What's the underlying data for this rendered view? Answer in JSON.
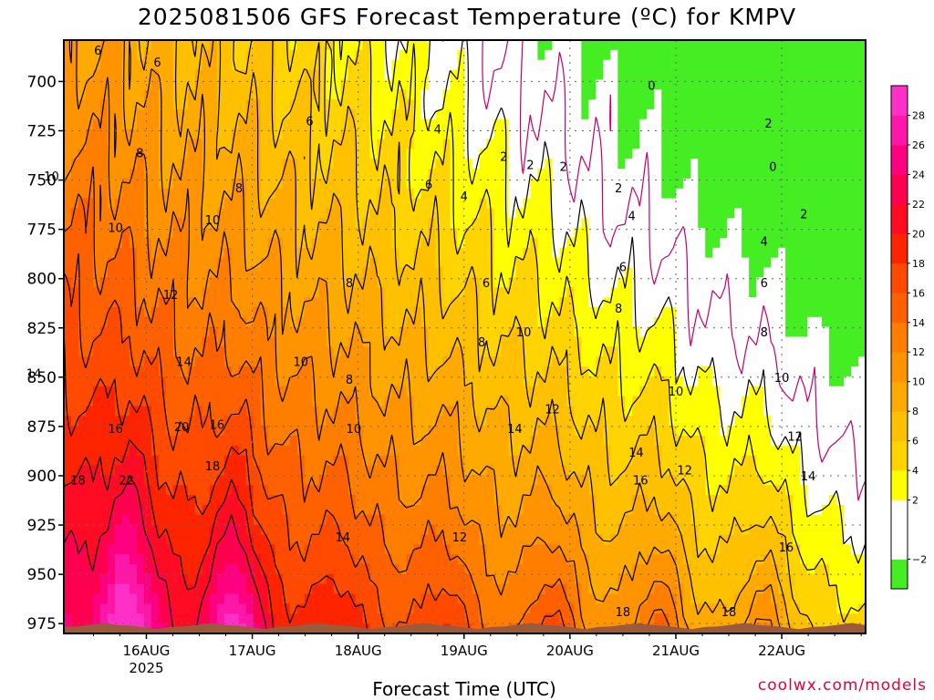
{
  "title": "2025081506 GFS Forecast Temperature (ºC) for KMPV",
  "credit": "coolwx.com/models",
  "chart_data": {
    "type": "heatmap",
    "title": "2025081506 GFS Forecast Temperature (ºC) for KMPV",
    "xlabel": "Forecast Time (UTC)",
    "ylabel": "",
    "y_ticks": [
      "700",
      "725",
      "750",
      "775",
      "800",
      "825",
      "850",
      "875",
      "900",
      "925",
      "950",
      "975"
    ],
    "y_values": [
      700,
      725,
      750,
      775,
      800,
      825,
      850,
      875,
      900,
      925,
      950,
      975
    ],
    "ylim": [
      679,
      980
    ],
    "x_ticks": [
      "16AUG",
      "17AUG",
      "18AUG",
      "19AUG",
      "20AUG",
      "21AUG",
      "22AUG"
    ],
    "x_tick_sub": [
      "2025",
      "",
      "",
      "",
      "",
      "",
      ""
    ],
    "xlim_hours": [
      -18.7,
      163
    ],
    "grid": "dotted",
    "colorbar": {
      "levels": [
        -4,
        -2,
        0,
        2,
        4,
        6,
        8,
        10,
        12,
        14,
        16,
        18,
        20,
        22,
        24,
        26,
        28,
        30
      ],
      "labels": [
        "−2",
        "2",
        "4",
        "6",
        "8",
        "10",
        "12",
        "14",
        "16",
        "18",
        "20",
        "22",
        "24",
        "26",
        "28"
      ],
      "colors": [
        "#44ee22",
        "#ffffff",
        "#ffffff",
        "#ffff00",
        "#ffd400",
        "#ffc000",
        "#ffaa00",
        "#ff9400",
        "#ff7e00",
        "#ff6000",
        "#ff4a00",
        "#ff2400",
        "#ff0c24",
        "#ff0050",
        "#ff0080",
        "#ff18a8",
        "#ff30c8"
      ]
    },
    "contours": [
      {
        "value": 0,
        "color": "#c00070"
      },
      {
        "value": 2
      },
      {
        "value": 4
      },
      {
        "value": 6
      },
      {
        "value": 8
      },
      {
        "value": 10
      },
      {
        "value": 12
      },
      {
        "value": 14
      },
      {
        "value": 16
      },
      {
        "value": 18
      },
      {
        "value": 20
      },
      {
        "value": 22
      }
    ],
    "contour_labels": [
      {
        "text": "6",
        "h": -11,
        "p": 684
      },
      {
        "text": "6",
        "h": 2.5,
        "p": 690
      },
      {
        "text": "6",
        "h": 37,
        "p": 720
      },
      {
        "text": "8",
        "h": -1.5,
        "p": 736
      },
      {
        "text": "8",
        "h": 21,
        "p": 754
      },
      {
        "text": "10",
        "h": -21.5,
        "p": 748
      },
      {
        "text": "10",
        "h": -7,
        "p": 774
      },
      {
        "text": "10",
        "h": 15,
        "p": 770
      },
      {
        "text": "12",
        "h": 5.5,
        "p": 808
      },
      {
        "text": "14",
        "h": 8.5,
        "p": 842
      },
      {
        "text": "14",
        "h": -25.5,
        "p": 848
      },
      {
        "text": "16",
        "h": -7,
        "p": 876
      },
      {
        "text": "20",
        "h": 8,
        "p": 875
      },
      {
        "text": "16",
        "h": 16,
        "p": 874
      },
      {
        "text": "18",
        "h": 15,
        "p": 895
      },
      {
        "text": "18",
        "h": -15.5,
        "p": 902
      },
      {
        "text": "22",
        "h": -4.5,
        "p": 902
      },
      {
        "text": "10",
        "h": 35,
        "p": 842
      },
      {
        "text": "4",
        "h": 66,
        "p": 724
      },
      {
        "text": "6",
        "h": 64,
        "p": 752
      },
      {
        "text": "4",
        "h": 72,
        "p": 758
      },
      {
        "text": "8",
        "h": 46,
        "p": 802
      },
      {
        "text": "8",
        "h": 46,
        "p": 851
      },
      {
        "text": "10",
        "h": 47,
        "p": 876
      },
      {
        "text": "14",
        "h": 44.5,
        "p": 931
      },
      {
        "text": "12",
        "h": 71,
        "p": 931
      },
      {
        "text": "6",
        "h": 77,
        "p": 802
      },
      {
        "text": "8",
        "h": 76,
        "p": 832
      },
      {
        "text": "10",
        "h": 85.5,
        "p": 827
      },
      {
        "text": "14",
        "h": 83.5,
        "p": 876
      },
      {
        "text": "2",
        "h": 81,
        "p": 738
      },
      {
        "text": "2",
        "h": 87,
        "p": 742
      },
      {
        "text": "2",
        "h": 94.5,
        "p": 743
      },
      {
        "text": "12",
        "h": 92,
        "p": 866
      },
      {
        "text": "2",
        "h": 107,
        "p": 754
      },
      {
        "text": "4",
        "h": 110,
        "p": 768
      },
      {
        "text": "6",
        "h": 108,
        "p": 794
      },
      {
        "text": "8",
        "h": 107,
        "p": 815
      },
      {
        "text": "10",
        "h": 120,
        "p": 857
      },
      {
        "text": "14",
        "h": 111,
        "p": 888
      },
      {
        "text": "12",
        "h": 122,
        "p": 897
      },
      {
        "text": "16",
        "h": 112,
        "p": 902
      },
      {
        "text": "18",
        "h": 108,
        "p": 969
      },
      {
        "text": "0",
        "h": 114.5,
        "p": 702
      },
      {
        "text": "2",
        "h": 141,
        "p": 721
      },
      {
        "text": "0",
        "h": 142,
        "p": 743
      },
      {
        "text": "2",
        "h": 149,
        "p": 767
      },
      {
        "text": "4",
        "h": 140,
        "p": 781
      },
      {
        "text": "6",
        "h": 140,
        "p": 802
      },
      {
        "text": "8",
        "h": 140,
        "p": 827
      },
      {
        "text": "10",
        "h": 144,
        "p": 850
      },
      {
        "text": "12",
        "h": 147,
        "p": 880
      },
      {
        "text": "14",
        "h": 150,
        "p": 900
      },
      {
        "text": "16",
        "h": 145,
        "p": 936
      },
      {
        "text": "18",
        "h": 132,
        "p": 969
      }
    ],
    "terrain": {
      "color": "#9c5a3c",
      "top_p": 977,
      "bottom_p": 980
    }
  }
}
